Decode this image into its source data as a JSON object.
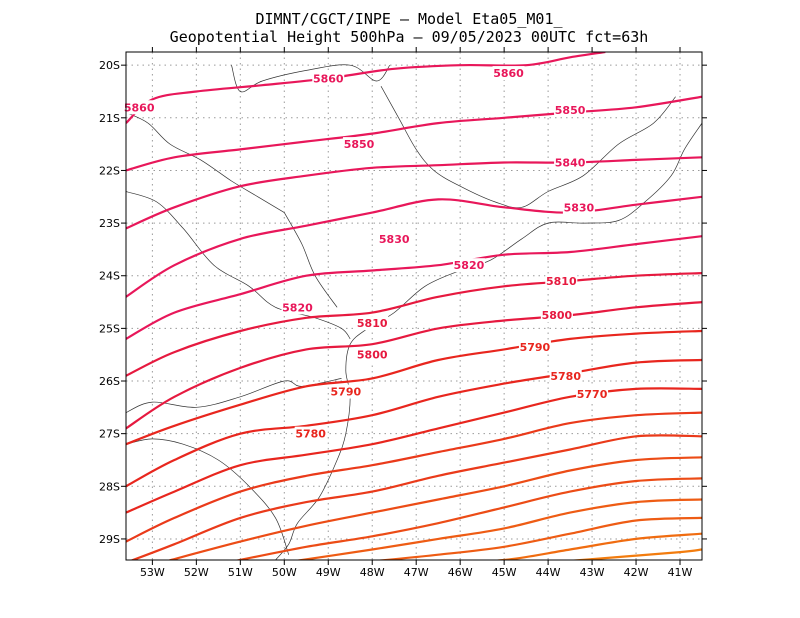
{
  "chart_data": {
    "type": "contour",
    "title_line1": "DIMNT/CGCT/INPE –  Model Eta05_M01_",
    "title_line2": "Geopotential Height 500hPa –  09/05/2023 00UTC fct=63h",
    "xlim": [
      -53.6,
      -40.5
    ],
    "ylim": [
      -29.4,
      -19.75
    ],
    "x_ticks": [
      -53,
      -52,
      -51,
      -50,
      -49,
      -48,
      -47,
      -46,
      -45,
      -44,
      -43,
      -42,
      -41
    ],
    "x_tick_labels": [
      "53W",
      "52W",
      "51W",
      "50W",
      "49W",
      "48W",
      "47W",
      "46W",
      "45W",
      "44W",
      "43W",
      "42W",
      "41W"
    ],
    "y_ticks": [
      -20,
      -21,
      -22,
      -23,
      -24,
      -25,
      -26,
      -27,
      -28,
      -29
    ],
    "y_tick_labels": [
      "20S",
      "21S",
      "22S",
      "23S",
      "24S",
      "25S",
      "26S",
      "27S",
      "28S",
      "29S"
    ],
    "grid": true,
    "contours": [
      {
        "level": "5860",
        "color": "#e8175a",
        "labels": [
          [
            -53.3,
            -20.8
          ],
          [
            -49.0,
            -20.25
          ],
          [
            -44.9,
            -20.15
          ]
        ],
        "points": [
          [
            -53.6,
            -21.1
          ],
          [
            -53.0,
            -20.65
          ],
          [
            -52.0,
            -20.5
          ],
          [
            -50.5,
            -20.38
          ],
          [
            -49.0,
            -20.25
          ],
          [
            -47.5,
            -20.07
          ],
          [
            -46.0,
            -20.0
          ],
          [
            -44.5,
            -20.0
          ],
          [
            -43.5,
            -19.85
          ],
          [
            -42.7,
            -19.75
          ]
        ]
      },
      {
        "level": "5850",
        "color": "#e8175a",
        "labels": [
          [
            -48.3,
            -21.5
          ],
          [
            -43.5,
            -20.85
          ]
        ],
        "points": [
          [
            -53.6,
            -22.0
          ],
          [
            -52.5,
            -21.75
          ],
          [
            -51.0,
            -21.6
          ],
          [
            -49.5,
            -21.45
          ],
          [
            -48.0,
            -21.3
          ],
          [
            -46.5,
            -21.1
          ],
          [
            -45.0,
            -21.0
          ],
          [
            -43.5,
            -20.9
          ],
          [
            -42.0,
            -20.8
          ],
          [
            -40.5,
            -20.6
          ]
        ]
      },
      {
        "level": "5840",
        "color": "#e8175a",
        "labels": [
          [
            -43.5,
            -21.85
          ]
        ],
        "points": [
          [
            -53.6,
            -23.1
          ],
          [
            -52.5,
            -22.7
          ],
          [
            -51.0,
            -22.3
          ],
          [
            -49.5,
            -22.1
          ],
          [
            -48.0,
            -21.95
          ],
          [
            -46.5,
            -21.9
          ],
          [
            -45.0,
            -21.85
          ],
          [
            -43.5,
            -21.85
          ],
          [
            -42.0,
            -21.8
          ],
          [
            -40.5,
            -21.75
          ]
        ]
      },
      {
        "level": "5830",
        "color": "#e8175a",
        "labels": [
          [
            -47.5,
            -23.3
          ],
          [
            -43.3,
            -22.7
          ]
        ],
        "points": [
          [
            -53.6,
            -24.4
          ],
          [
            -52.5,
            -23.8
          ],
          [
            -51.0,
            -23.3
          ],
          [
            -49.5,
            -23.05
          ],
          [
            -48.0,
            -22.8
          ],
          [
            -46.5,
            -22.55
          ],
          [
            -45.0,
            -22.7
          ],
          [
            -43.5,
            -22.8
          ],
          [
            -42.0,
            -22.65
          ],
          [
            -40.5,
            -22.5
          ]
        ]
      },
      {
        "level": "5820",
        "color": "#e8175a",
        "labels": [
          [
            -49.7,
            -24.6
          ],
          [
            -45.8,
            -23.8
          ]
        ],
        "points": [
          [
            -53.6,
            -25.2
          ],
          [
            -52.5,
            -24.7
          ],
          [
            -51.0,
            -24.35
          ],
          [
            -49.5,
            -24.0
          ],
          [
            -48.0,
            -23.9
          ],
          [
            -46.5,
            -23.8
          ],
          [
            -45.0,
            -23.6
          ],
          [
            -43.5,
            -23.55
          ],
          [
            -42.0,
            -23.4
          ],
          [
            -40.5,
            -23.25
          ]
        ]
      },
      {
        "level": "5810",
        "color": "#e6193f",
        "labels": [
          [
            -48.0,
            -24.9
          ],
          [
            -43.7,
            -24.1
          ]
        ],
        "points": [
          [
            -53.6,
            -25.9
          ],
          [
            -52.5,
            -25.45
          ],
          [
            -51.0,
            -25.05
          ],
          [
            -49.5,
            -24.8
          ],
          [
            -48.0,
            -24.7
          ],
          [
            -46.5,
            -24.4
          ],
          [
            -45.0,
            -24.2
          ],
          [
            -43.5,
            -24.1
          ],
          [
            -42.0,
            -24.0
          ],
          [
            -40.5,
            -23.95
          ]
        ]
      },
      {
        "level": "5800",
        "color": "#e6193f",
        "labels": [
          [
            -48.0,
            -25.5
          ],
          [
            -43.8,
            -24.75
          ]
        ],
        "points": [
          [
            -53.6,
            -26.9
          ],
          [
            -52.5,
            -26.3
          ],
          [
            -51.0,
            -25.75
          ],
          [
            -49.5,
            -25.4
          ],
          [
            -48.0,
            -25.3
          ],
          [
            -46.5,
            -25.0
          ],
          [
            -45.0,
            -24.85
          ],
          [
            -43.5,
            -24.75
          ],
          [
            -42.0,
            -24.6
          ],
          [
            -40.5,
            -24.5
          ]
        ]
      },
      {
        "level": "5790",
        "color": "#e8261e",
        "labels": [
          [
            -48.6,
            -26.2
          ],
          [
            -44.3,
            -25.35
          ]
        ],
        "points": [
          [
            -53.6,
            -27.2
          ],
          [
            -52.5,
            -26.85
          ],
          [
            -51.0,
            -26.45
          ],
          [
            -49.5,
            -26.1
          ],
          [
            -48.0,
            -25.95
          ],
          [
            -46.5,
            -25.6
          ],
          [
            -45.0,
            -25.4
          ],
          [
            -43.5,
            -25.2
          ],
          [
            -42.0,
            -25.1
          ],
          [
            -40.5,
            -25.05
          ]
        ]
      },
      {
        "level": "5780",
        "color": "#e8261e",
        "labels": [
          [
            -49.4,
            -27.0
          ],
          [
            -43.6,
            -25.9
          ]
        ],
        "points": [
          [
            -53.6,
            -28.0
          ],
          [
            -52.5,
            -27.5
          ],
          [
            -51.0,
            -27.0
          ],
          [
            -49.5,
            -26.85
          ],
          [
            -48.0,
            -26.65
          ],
          [
            -46.5,
            -26.3
          ],
          [
            -45.0,
            -26.05
          ],
          [
            -43.5,
            -25.85
          ],
          [
            -42.0,
            -25.65
          ],
          [
            -40.5,
            -25.6
          ]
        ]
      },
      {
        "level": "5770",
        "color": "#e8261e",
        "labels": [
          [
            -43.0,
            -26.25
          ]
        ],
        "points": [
          [
            -53.6,
            -28.5
          ],
          [
            -52.5,
            -28.1
          ],
          [
            -51.0,
            -27.6
          ],
          [
            -49.5,
            -27.4
          ],
          [
            -48.0,
            -27.2
          ],
          [
            -46.5,
            -26.9
          ],
          [
            -45.0,
            -26.6
          ],
          [
            -43.5,
            -26.3
          ],
          [
            -42.0,
            -26.15
          ],
          [
            -40.5,
            -26.15
          ]
        ]
      },
      {
        "level": "",
        "color": "#ea3a1a",
        "labels": [],
        "points": [
          [
            -53.6,
            -29.05
          ],
          [
            -52.5,
            -28.6
          ],
          [
            -51.0,
            -28.1
          ],
          [
            -49.5,
            -27.8
          ],
          [
            -48.0,
            -27.6
          ],
          [
            -46.5,
            -27.35
          ],
          [
            -45.0,
            -27.1
          ],
          [
            -43.5,
            -26.8
          ],
          [
            -42.0,
            -26.65
          ],
          [
            -40.5,
            -26.6
          ]
        ]
      },
      {
        "level": "",
        "color": "#ea3a1a",
        "labels": [],
        "points": [
          [
            -53.6,
            -29.45
          ],
          [
            -52.5,
            -29.1
          ],
          [
            -51.0,
            -28.6
          ],
          [
            -49.5,
            -28.3
          ],
          [
            -48.0,
            -28.1
          ],
          [
            -46.5,
            -27.8
          ],
          [
            -45.0,
            -27.55
          ],
          [
            -43.5,
            -27.3
          ],
          [
            -42.0,
            -27.05
          ],
          [
            -40.5,
            -27.05
          ]
        ]
      },
      {
        "level": "",
        "color": "#ec4c16",
        "labels": [],
        "points": [
          [
            -52.8,
            -29.45
          ],
          [
            -51.0,
            -29.05
          ],
          [
            -49.5,
            -28.75
          ],
          [
            -48.0,
            -28.5
          ],
          [
            -46.5,
            -28.25
          ],
          [
            -45.0,
            -28.0
          ],
          [
            -43.5,
            -27.7
          ],
          [
            -42.0,
            -27.5
          ],
          [
            -40.5,
            -27.45
          ]
        ]
      },
      {
        "level": "",
        "color": "#ec4c16",
        "labels": [],
        "points": [
          [
            -51.3,
            -29.45
          ],
          [
            -49.5,
            -29.15
          ],
          [
            -48.0,
            -28.95
          ],
          [
            -46.5,
            -28.7
          ],
          [
            -45.0,
            -28.4
          ],
          [
            -43.5,
            -28.1
          ],
          [
            -42.0,
            -27.9
          ],
          [
            -40.5,
            -27.85
          ]
        ]
      },
      {
        "level": "",
        "color": "#ee5c14",
        "labels": [],
        "points": [
          [
            -50.0,
            -29.45
          ],
          [
            -48.0,
            -29.2
          ],
          [
            -46.5,
            -29.0
          ],
          [
            -45.0,
            -28.8
          ],
          [
            -43.5,
            -28.5
          ],
          [
            -42.0,
            -28.3
          ],
          [
            -40.5,
            -28.25
          ]
        ]
      },
      {
        "level": "",
        "color": "#ee5c14",
        "labels": [],
        "points": [
          [
            -48.3,
            -29.45
          ],
          [
            -46.5,
            -29.3
          ],
          [
            -45.0,
            -29.15
          ],
          [
            -43.5,
            -28.9
          ],
          [
            -42.0,
            -28.65
          ],
          [
            -40.5,
            -28.6
          ]
        ]
      },
      {
        "level": "",
        "color": "#f06c10",
        "labels": [],
        "points": [
          [
            -46.5,
            -29.45
          ],
          [
            -45.0,
            -29.4
          ],
          [
            -43.5,
            -29.2
          ],
          [
            -42.0,
            -29.0
          ],
          [
            -40.5,
            -28.9
          ]
        ]
      },
      {
        "level": "",
        "color": "#f27c0e",
        "labels": [],
        "points": [
          [
            -44.0,
            -29.45
          ],
          [
            -42.5,
            -29.35
          ],
          [
            -41.0,
            -29.25
          ],
          [
            -40.5,
            -29.2
          ]
        ]
      }
    ],
    "map_lines": [
      [
        [
          -53.6,
          -26.6
        ],
        [
          -53.0,
          -26.4
        ],
        [
          -52.0,
          -26.5
        ],
        [
          -51.0,
          -26.3
        ],
        [
          -50.0,
          -26.0
        ],
        [
          -49.6,
          -26.1
        ],
        [
          -48.7,
          -25.95
        ]
      ],
      [
        [
          -53.6,
          -27.2
        ],
        [
          -53.0,
          -27.1
        ],
        [
          -52.3,
          -27.2
        ],
        [
          -51.5,
          -27.5
        ],
        [
          -50.8,
          -28.0
        ],
        [
          -50.2,
          -28.6
        ],
        [
          -49.9,
          -29.3
        ]
      ],
      [
        [
          -50.2,
          -29.4
        ],
        [
          -49.9,
          -29.1
        ],
        [
          -49.7,
          -28.7
        ],
        [
          -49.2,
          -28.2
        ],
        [
          -48.8,
          -27.5
        ],
        [
          -48.6,
          -27.0
        ],
        [
          -48.5,
          -26.3
        ],
        [
          -48.6,
          -25.8
        ],
        [
          -48.5,
          -25.3
        ],
        [
          -48.1,
          -25.0
        ],
        [
          -47.5,
          -24.7
        ],
        [
          -46.8,
          -24.2
        ],
        [
          -46.0,
          -23.9
        ],
        [
          -45.3,
          -23.7
        ],
        [
          -44.6,
          -23.3
        ],
        [
          -44.0,
          -23.0
        ],
        [
          -43.2,
          -23.0
        ],
        [
          -42.4,
          -22.95
        ],
        [
          -41.8,
          -22.6
        ],
        [
          -41.2,
          -22.1
        ],
        [
          -40.9,
          -21.6
        ],
        [
          -40.5,
          -21.1
        ]
      ],
      [
        [
          -48.5,
          -25.2
        ],
        [
          -48.7,
          -25.0
        ],
        [
          -49.3,
          -24.8
        ],
        [
          -50.2,
          -24.6
        ],
        [
          -50.8,
          -24.2
        ],
        [
          -51.6,
          -23.8
        ],
        [
          -52.3,
          -23.1
        ],
        [
          -52.9,
          -22.6
        ],
        [
          -53.6,
          -22.4
        ]
      ],
      [
        [
          -50.0,
          -22.8
        ],
        [
          -49.6,
          -23.4
        ],
        [
          -49.3,
          -24.0
        ],
        [
          -48.8,
          -24.6
        ]
      ],
      [
        [
          -50.0,
          -22.8
        ],
        [
          -50.6,
          -22.5
        ],
        [
          -51.2,
          -22.2
        ],
        [
          -51.9,
          -21.8
        ],
        [
          -52.6,
          -21.5
        ],
        [
          -53.1,
          -21.1
        ],
        [
          -53.6,
          -20.9
        ]
      ],
      [
        [
          -51.2,
          -20.0
        ],
        [
          -51.0,
          -20.5
        ],
        [
          -50.5,
          -20.3
        ],
        [
          -49.5,
          -20.1
        ],
        [
          -48.5,
          -20.0
        ],
        [
          -47.9,
          -20.3
        ],
        [
          -47.6,
          -20.0
        ]
      ],
      [
        [
          -47.8,
          -20.4
        ],
        [
          -47.4,
          -21.0
        ],
        [
          -47.0,
          -21.6
        ],
        [
          -46.6,
          -22.0
        ],
        [
          -46.0,
          -22.3
        ],
        [
          -45.2,
          -22.6
        ],
        [
          -44.6,
          -22.7
        ],
        [
          -44.0,
          -22.4
        ],
        [
          -43.2,
          -22.1
        ],
        [
          -42.4,
          -21.5
        ],
        [
          -41.6,
          -21.1
        ],
        [
          -41.1,
          -20.6
        ]
      ]
    ]
  }
}
